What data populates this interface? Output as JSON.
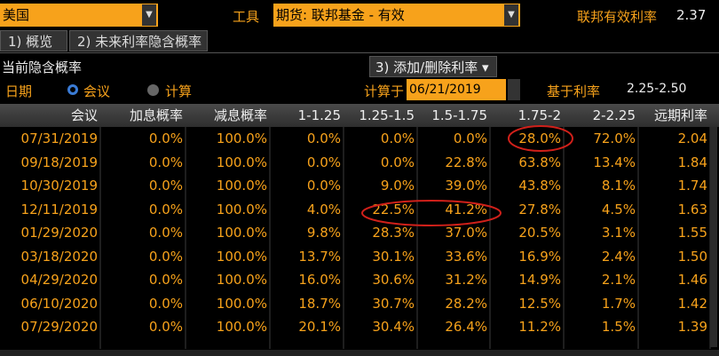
{
  "header": {
    "country": "美国",
    "instrument_label": "工具",
    "instrument": "期货: 联邦基金 - 有效",
    "rate_label": "联邦有效利率",
    "rate_value": "2.37"
  },
  "tabs": [
    "1) 概览",
    "2) 未来利率隐含概率"
  ],
  "section_title": "当前隐含概率",
  "add_button": "3) 添加/删除利率",
  "options": {
    "date_label": "日期",
    "radio_meeting": "会议",
    "radio_calc": "计算",
    "calc_on_label": "计算于",
    "calc_date": "06/21/2019",
    "base_rate_label": "基于利率",
    "base_rate": "2.25-2.50"
  },
  "table": {
    "columns": [
      "会议",
      "加息概率",
      "减息概率",
      "1-1.25",
      "1.25-1.5",
      "1.5-1.75",
      "1.75-2",
      "2-2.25",
      "远期利率"
    ],
    "rows": [
      [
        "07/31/2019",
        "0.0%",
        "100.0%",
        "0.0%",
        "0.0%",
        "0.0%",
        "28.0%",
        "72.0%",
        "2.04"
      ],
      [
        "09/18/2019",
        "0.0%",
        "100.0%",
        "0.0%",
        "0.0%",
        "22.8%",
        "63.8%",
        "13.4%",
        "1.84"
      ],
      [
        "10/30/2019",
        "0.0%",
        "100.0%",
        "0.0%",
        "9.0%",
        "39.0%",
        "43.8%",
        "8.1%",
        "1.74"
      ],
      [
        "12/11/2019",
        "0.0%",
        "100.0%",
        "4.0%",
        "22.5%",
        "41.2%",
        "27.8%",
        "4.5%",
        "1.63"
      ],
      [
        "01/29/2020",
        "0.0%",
        "100.0%",
        "9.8%",
        "28.3%",
        "37.0%",
        "20.5%",
        "3.1%",
        "1.55"
      ],
      [
        "03/18/2020",
        "0.0%",
        "100.0%",
        "13.7%",
        "30.1%",
        "33.6%",
        "16.9%",
        "2.4%",
        "1.50"
      ],
      [
        "04/29/2020",
        "0.0%",
        "100.0%",
        "16.0%",
        "30.6%",
        "31.2%",
        "14.9%",
        "2.1%",
        "1.46"
      ],
      [
        "06/10/2020",
        "0.0%",
        "100.0%",
        "18.7%",
        "30.7%",
        "28.2%",
        "12.5%",
        "1.7%",
        "1.42"
      ],
      [
        "07/29/2020",
        "0.0%",
        "100.0%",
        "20.1%",
        "30.4%",
        "26.4%",
        "11.2%",
        "1.5%",
        "1.39"
      ]
    ]
  }
}
